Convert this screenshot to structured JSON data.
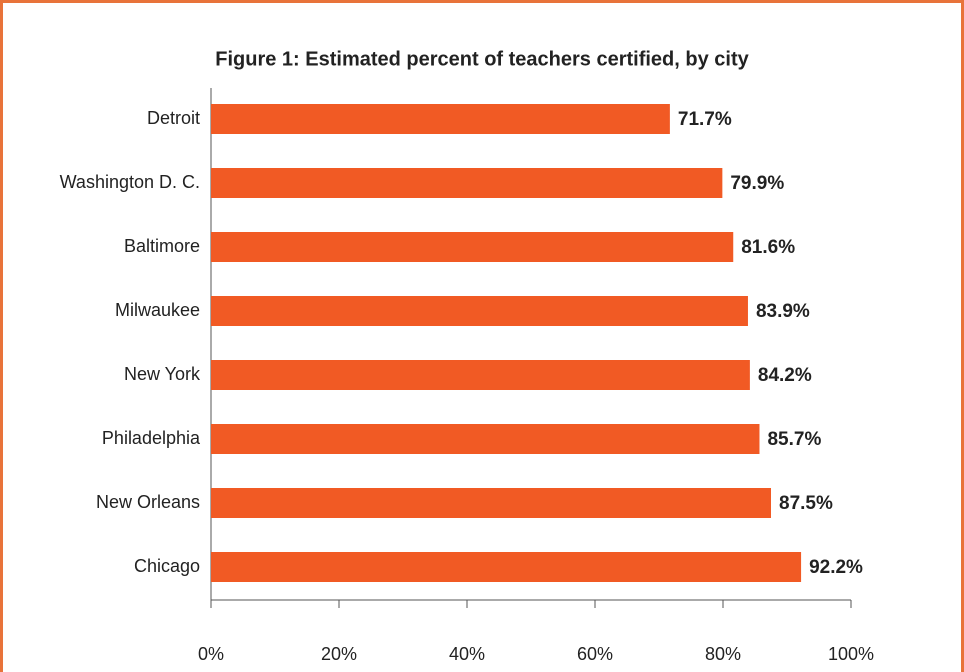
{
  "chart_data": {
    "type": "bar",
    "orientation": "horizontal",
    "title": "Figure 1: Estimated percent of teachers certified, by city",
    "categories": [
      "Detroit",
      "Washington D. C.",
      "Baltimore",
      "Milwaukee",
      "New York",
      "Philadelphia",
      "New Orleans",
      "Chicago"
    ],
    "values": [
      71.7,
      79.9,
      81.6,
      83.9,
      84.2,
      85.7,
      87.5,
      92.2
    ],
    "value_labels": [
      "71.7%",
      "79.9%",
      "81.6%",
      "83.9%",
      "84.2%",
      "85.7%",
      "87.5%",
      "92.2%"
    ],
    "color": "#f15a24",
    "xlim": [
      0,
      100
    ],
    "xticks": [
      {
        "value": 0,
        "label": "0%"
      },
      {
        "value": 20,
        "label": "20%"
      },
      {
        "value": 40,
        "label": "40%"
      },
      {
        "value": 60,
        "label": "60%"
      },
      {
        "value": 80,
        "label": "80%"
      },
      {
        "value": 100,
        "label": "100%"
      }
    ],
    "grid": false
  }
}
